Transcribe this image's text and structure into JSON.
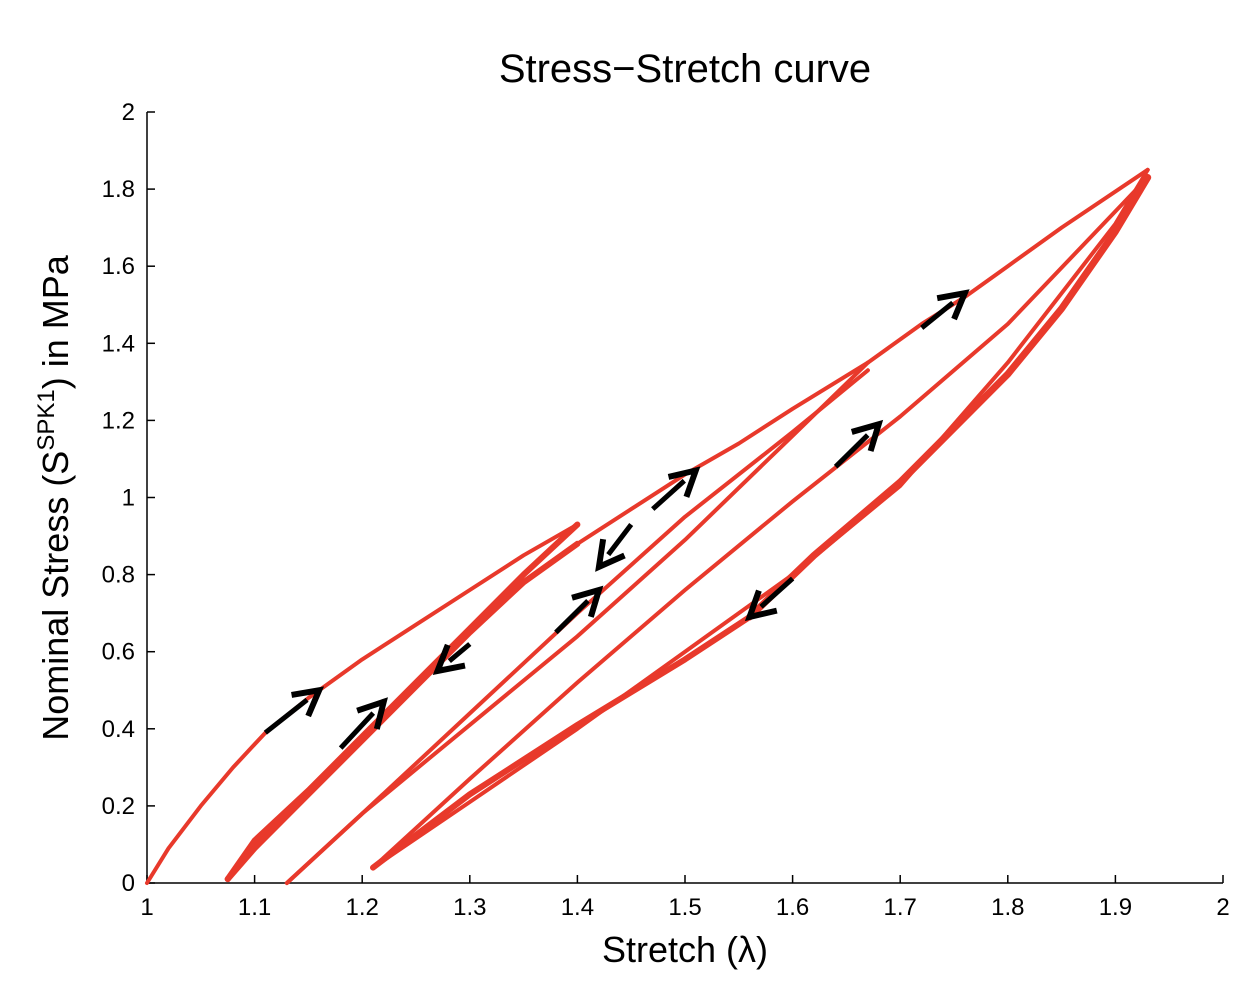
{
  "chart_data": {
    "type": "line",
    "title": "Stress−Stretch curve",
    "xlabel": "Stretch (λ)",
    "ylabel": "Nominal Stress (S",
    "ylabel_sup": "SPK1",
    "ylabel_tail": ") in MPa",
    "xlim": [
      1,
      2
    ],
    "ylim": [
      0,
      2
    ],
    "xticks": [
      "1",
      "1.1",
      "1.2",
      "1.3",
      "1.4",
      "1.5",
      "1.6",
      "1.7",
      "1.8",
      "1.9",
      "2"
    ],
    "yticks": [
      "0",
      "0.2",
      "0.4",
      "0.6",
      "0.8",
      "1",
      "1.2",
      "1.4",
      "1.6",
      "1.8",
      "2"
    ],
    "grid": false,
    "series": [
      {
        "x": [
          1.0,
          1.02,
          1.05,
          1.08,
          1.11,
          1.15,
          1.2,
          1.25,
          1.3,
          1.35,
          1.4
        ],
        "y": [
          0.0,
          0.09,
          0.2,
          0.3,
          0.39,
          0.48,
          0.58,
          0.67,
          0.76,
          0.85,
          0.93
        ],
        "width": 4
      },
      {
        "x": [
          1.4,
          1.35,
          1.3,
          1.25,
          1.2,
          1.15,
          1.1,
          1.075
        ],
        "y": [
          0.93,
          0.8,
          0.66,
          0.52,
          0.38,
          0.24,
          0.11,
          0.01
        ],
        "width": 6
      },
      {
        "x": [
          1.075,
          1.1,
          1.15,
          1.2,
          1.25,
          1.3,
          1.35,
          1.4
        ],
        "y": [
          0.01,
          0.09,
          0.23,
          0.37,
          0.51,
          0.65,
          0.78,
          0.88
        ],
        "width": 6
      },
      {
        "x": [
          1.4,
          1.45,
          1.5,
          1.55,
          1.6,
          1.67
        ],
        "y": [
          0.88,
          0.97,
          1.06,
          1.14,
          1.23,
          1.35
        ],
        "width": 4
      },
      {
        "x": [
          1.67,
          1.6,
          1.5,
          1.4,
          1.3,
          1.2,
          1.13
        ],
        "y": [
          1.35,
          1.16,
          0.89,
          0.64,
          0.41,
          0.18,
          0.0
        ],
        "width": 4
      },
      {
        "x": [
          1.13,
          1.2,
          1.3,
          1.4,
          1.5,
          1.6,
          1.67
        ],
        "y": [
          0.0,
          0.18,
          0.44,
          0.7,
          0.95,
          1.17,
          1.33
        ],
        "width": 4
      },
      {
        "x": [
          1.67,
          1.72,
          1.76,
          1.8,
          1.85,
          1.93
        ],
        "y": [
          1.35,
          1.45,
          1.52,
          1.6,
          1.7,
          1.85
        ],
        "width": 4
      },
      {
        "x": [
          1.93,
          1.9,
          1.8,
          1.7,
          1.6,
          1.5,
          1.4,
          1.3,
          1.21
        ],
        "y": [
          1.85,
          1.71,
          1.35,
          1.03,
          0.8,
          0.6,
          0.4,
          0.21,
          0.04
        ],
        "width": 4
      },
      {
        "x": [
          1.21,
          1.3,
          1.4,
          1.5,
          1.6,
          1.7,
          1.8,
          1.93
        ],
        "y": [
          0.04,
          0.27,
          0.52,
          0.76,
          0.99,
          1.21,
          1.45,
          1.83
        ],
        "width": 4
      },
      {
        "x": [
          1.93,
          1.9,
          1.85,
          1.8,
          1.7,
          1.62,
          1.56
        ],
        "y": [
          1.83,
          1.69,
          1.49,
          1.32,
          1.04,
          0.85,
          0.69
        ],
        "width": 7
      },
      {
        "x": [
          1.56,
          1.5,
          1.4,
          1.3,
          1.21
        ],
        "y": [
          0.69,
          0.58,
          0.41,
          0.23,
          0.04
        ],
        "width": 6
      }
    ],
    "arrows": [
      {
        "from": [
          1.11,
          0.39
        ],
        "to": [
          1.16,
          0.5
        ]
      },
      {
        "from": [
          1.18,
          0.35
        ],
        "to": [
          1.22,
          0.47
        ]
      },
      {
        "from": [
          1.3,
          0.62
        ],
        "to": [
          1.27,
          0.55
        ]
      },
      {
        "from": [
          1.38,
          0.65
        ],
        "to": [
          1.42,
          0.76
        ]
      },
      {
        "from": [
          1.47,
          0.97
        ],
        "to": [
          1.51,
          1.07
        ]
      },
      {
        "from": [
          1.45,
          0.93
        ],
        "to": [
          1.42,
          0.82
        ]
      },
      {
        "from": [
          1.64,
          1.08
        ],
        "to": [
          1.68,
          1.19
        ]
      },
      {
        "from": [
          1.72,
          1.44
        ],
        "to": [
          1.76,
          1.53
        ]
      },
      {
        "from": [
          1.6,
          0.79
        ],
        "to": [
          1.56,
          0.69
        ]
      }
    ],
    "line_color": "#e8392b",
    "arrow_color": "#000000"
  }
}
